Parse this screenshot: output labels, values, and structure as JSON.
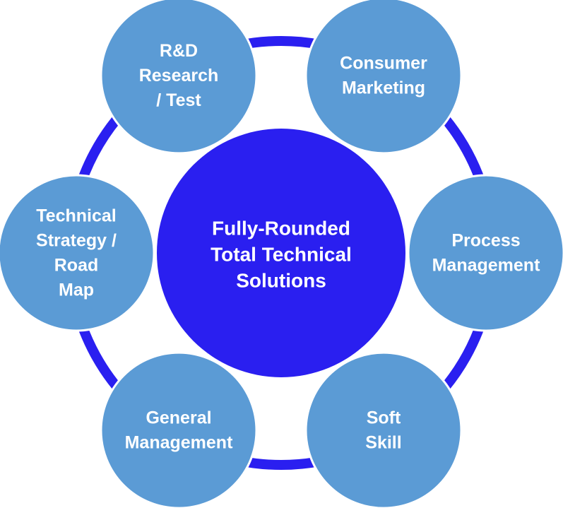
{
  "colors": {
    "background": "#ffffff",
    "ring": "#2a1ff0",
    "center_fill": "#2a1ff0",
    "node_fill": "#5b9bd5",
    "node_stroke": "#ffffff",
    "text": "#ffffff"
  },
  "center": {
    "lines": [
      "Fully-Rounded",
      "Total Technical",
      "Solutions"
    ]
  },
  "nodes": [
    {
      "id": "rnd",
      "lines": [
        "R&D",
        "Research",
        "/ Test"
      ]
    },
    {
      "id": "consumer-marketing",
      "lines": [
        "Consumer",
        "Marketing"
      ]
    },
    {
      "id": "process-management",
      "lines": [
        "Process",
        "Management"
      ]
    },
    {
      "id": "soft-skill",
      "lines": [
        "Soft",
        "Skill"
      ]
    },
    {
      "id": "general-management",
      "lines": [
        "General",
        "Management"
      ]
    },
    {
      "id": "technical-strategy",
      "lines": [
        "Technical",
        "Strategy /",
        "Road",
        "Map"
      ]
    }
  ]
}
